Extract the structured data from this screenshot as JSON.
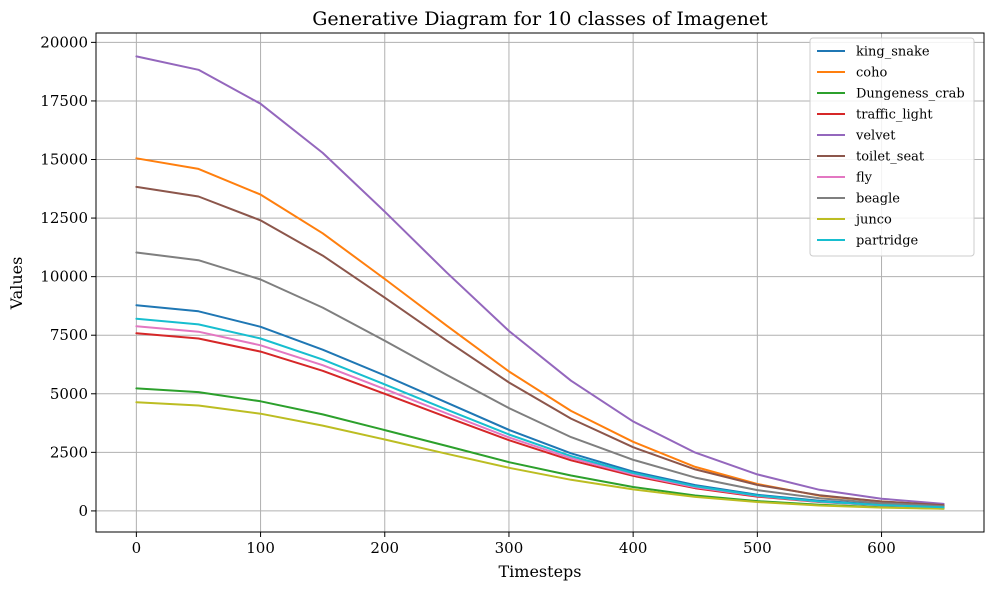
{
  "chart_data": {
    "type": "line",
    "title": "Generative Diagram for 10 classes of Imagenet",
    "xlabel": "Timesteps",
    "ylabel": "Values",
    "xlim": [
      -32.5,
      682.5
    ],
    "ylim": [
      -900,
      20400
    ],
    "grid": true,
    "legend_position": "top-right",
    "x_ticks": [
      0,
      100,
      200,
      300,
      400,
      500,
      600
    ],
    "y_ticks": [
      0,
      2500,
      5000,
      7500,
      10000,
      12500,
      15000,
      17500,
      20000
    ],
    "x": [
      0,
      50,
      100,
      150,
      200,
      250,
      300,
      350,
      400,
      450,
      500,
      550,
      600,
      650
    ],
    "series": [
      {
        "name": "king_snake",
        "color": "#1f77b4",
        "values": [
          8780,
          8520,
          7860,
          6880,
          5780,
          4620,
          3460,
          2460,
          1680,
          1100,
          690,
          430,
          270,
          170
        ]
      },
      {
        "name": "coho",
        "color": "#ff7f0e",
        "values": [
          15050,
          14600,
          13500,
          11850,
          9900,
          7900,
          5950,
          4270,
          2950,
          1880,
          1150,
          650,
          400,
          230
        ]
      },
      {
        "name": "Dungeness_crab",
        "color": "#2ca02c",
        "values": [
          5230,
          5070,
          4680,
          4120,
          3450,
          2770,
          2080,
          1510,
          1020,
          660,
          420,
          260,
          160,
          100
        ]
      },
      {
        "name": "traffic_light",
        "color": "#d62728",
        "values": [
          7580,
          7360,
          6800,
          5980,
          5000,
          4000,
          3020,
          2160,
          1500,
          970,
          610,
          380,
          240,
          150
        ]
      },
      {
        "name": "velvet",
        "color": "#9467bd",
        "values": [
          19400,
          18830,
          17380,
          15280,
          12770,
          10170,
          7680,
          5560,
          3820,
          2490,
          1560,
          900,
          520,
          300
        ]
      },
      {
        "name": "toilet_seat",
        "color": "#8c564b",
        "values": [
          13830,
          13420,
          12400,
          10900,
          9100,
          7260,
          5480,
          3940,
          2720,
          1770,
          1110,
          670,
          400,
          250
        ]
      },
      {
        "name": "fly",
        "color": "#e377c2",
        "values": [
          7880,
          7650,
          7070,
          6220,
          5200,
          4160,
          3140,
          2250,
          1560,
          1010,
          640,
          390,
          240,
          150
        ]
      },
      {
        "name": "beagle",
        "color": "#7f7f7f",
        "values": [
          11030,
          10700,
          9880,
          8680,
          7260,
          5800,
          4390,
          3150,
          2180,
          1420,
          890,
          540,
          330,
          200
        ]
      },
      {
        "name": "junco",
        "color": "#bcbd22",
        "values": [
          4640,
          4500,
          4150,
          3640,
          3050,
          2440,
          1840,
          1330,
          920,
          600,
          380,
          230,
          140,
          90
        ]
      },
      {
        "name": "partridge",
        "color": "#17becf",
        "values": [
          8200,
          7960,
          7360,
          6460,
          5400,
          4320,
          3260,
          2340,
          1620,
          1050,
          660,
          400,
          250,
          160
        ]
      }
    ]
  }
}
